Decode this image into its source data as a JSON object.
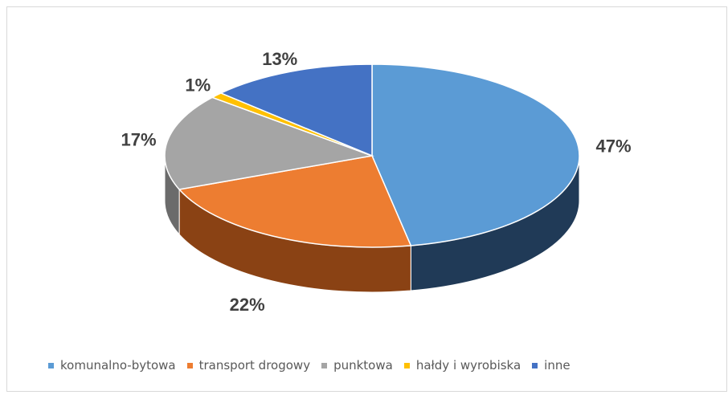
{
  "chart_data": {
    "type": "pie",
    "title": "",
    "categories": [
      "komunalno-bytowa",
      "transport drogowy",
      "punktowa",
      "hałdy i wyrobiska",
      "inne"
    ],
    "values": [
      47,
      22,
      17,
      1,
      13
    ],
    "labels": [
      "47%",
      "22%",
      "17%",
      "1%",
      "13%"
    ],
    "colors": [
      "#5b9bd5",
      "#ed7d31",
      "#a5a5a5",
      "#ffc000",
      "#4472c4"
    ],
    "side_colors": [
      "#203a57",
      "#8a4214",
      "#6b6b6b",
      "#a67c00",
      "#2a4a80"
    ],
    "legend_position": "bottom",
    "style": "3d"
  }
}
